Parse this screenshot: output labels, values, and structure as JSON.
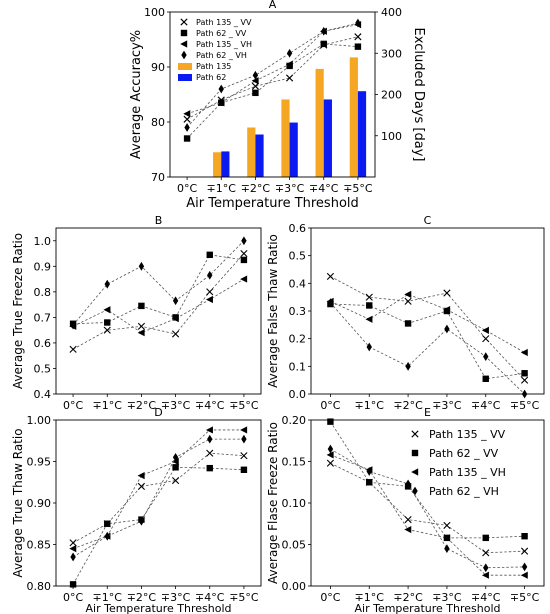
{
  "x_categories": [
    "0°C",
    "∓1°C",
    "∓2°C",
    "∓3°C",
    "∓4°C",
    "∓5°C"
  ],
  "xlabel": "Air Temperature Threshold",
  "chart_data": [
    {
      "panel": "A",
      "type": "line",
      "title": "A",
      "xlabel": "Air Temperature Threshold",
      "ylabel": "Average Accuracy%",
      "ylim": [
        70,
        100
      ],
      "yticks": [
        70,
        80,
        90,
        100
      ],
      "y2label": "Excluded Days [day]",
      "y2lim": [
        0,
        400
      ],
      "y2ticks": [
        100,
        200,
        300,
        400
      ],
      "legend_position": "top-left",
      "categories": [
        "0°C",
        "∓1°C",
        "∓2°C",
        "∓3°C",
        "∓4°C",
        "∓5°C"
      ],
      "series": [
        {
          "name": "Path 135 _ VV",
          "marker": "x",
          "values": [
            80.5,
            84.0,
            86.5,
            88.0,
            94.0,
            95.5
          ]
        },
        {
          "name": "Path 62 _ VV",
          "marker": "square",
          "values": [
            77.0,
            83.5,
            85.3,
            90.2,
            94.2,
            93.7
          ]
        },
        {
          "name": "Path 135 _ VH",
          "marker": "triangle-left",
          "values": [
            81.5,
            83.5,
            87.5,
            90.5,
            96.5,
            97.7
          ]
        },
        {
          "name": "Path 62 _ VH",
          "marker": "diamond",
          "values": [
            79.0,
            86.0,
            88.5,
            92.5,
            96.5,
            98.0
          ]
        }
      ],
      "bars": [
        {
          "name": "Path 135",
          "color": "#F5A623",
          "axis": "y2",
          "values": [
            0,
            60,
            120,
            188,
            262,
            290
          ]
        },
        {
          "name": "Path 62",
          "color": "#0A1AF0",
          "axis": "y2",
          "values": [
            0,
            62,
            103,
            132,
            188,
            208
          ]
        }
      ]
    },
    {
      "panel": "B",
      "type": "line",
      "title": "B",
      "ylabel": "Average True Freeze Ratio",
      "ylim": [
        0.4,
        1.05
      ],
      "yticks": [
        0.4,
        0.5,
        0.6,
        0.7,
        0.8,
        0.9,
        1.0
      ],
      "categories": [
        "0°C",
        "∓1°C",
        "∓2°C",
        "∓3°C",
        "∓4°C",
        "∓5°C"
      ],
      "series": [
        {
          "name": "Path 135 _ VV",
          "marker": "x",
          "values": [
            0.575,
            0.65,
            0.665,
            0.635,
            0.8,
            0.95
          ]
        },
        {
          "name": "Path 62 _ VV",
          "marker": "square",
          "values": [
            0.675,
            0.68,
            0.745,
            0.7,
            0.945,
            0.925
          ]
        },
        {
          "name": "Path 135 _ VH",
          "marker": "triangle-left",
          "values": [
            0.665,
            0.73,
            0.64,
            0.695,
            0.77,
            0.85
          ]
        },
        {
          "name": "Path 62 _ VH",
          "marker": "diamond",
          "values": [
            0.67,
            0.83,
            0.9,
            0.765,
            0.865,
            1.0
          ]
        }
      ]
    },
    {
      "panel": "C",
      "type": "line",
      "title": "C",
      "ylabel": "Average False Thaw Ratio",
      "ylim": [
        0.0,
        0.6
      ],
      "yticks": [
        0.0,
        0.1,
        0.2,
        0.3,
        0.4,
        0.5,
        0.6
      ],
      "categories": [
        "0°C",
        "∓1°C",
        "∓2°C",
        "∓3°C",
        "∓4°C",
        "∓5°C"
      ],
      "series": [
        {
          "name": "Path 135 _ VV",
          "marker": "x",
          "values": [
            0.425,
            0.35,
            0.335,
            0.365,
            0.2,
            0.05
          ]
        },
        {
          "name": "Path 62 _ VV",
          "marker": "square",
          "values": [
            0.325,
            0.32,
            0.255,
            0.3,
            0.055,
            0.075
          ]
        },
        {
          "name": "Path 135 _ VH",
          "marker": "triangle-left",
          "values": [
            0.335,
            0.27,
            0.36,
            0.305,
            0.23,
            0.15
          ]
        },
        {
          "name": "Path 62 _ VH",
          "marker": "diamond",
          "values": [
            0.33,
            0.17,
            0.1,
            0.235,
            0.135,
            0.0
          ]
        }
      ]
    },
    {
      "panel": "D",
      "type": "line",
      "title": "D",
      "xlabel": "Air Temperature Threshold",
      "ylabel": "Average True Thaw Ratio",
      "ylim": [
        0.8,
        1.0
      ],
      "yticks": [
        0.8,
        0.85,
        0.9,
        0.95,
        1.0
      ],
      "categories": [
        "0°C",
        "∓1°C",
        "∓2°C",
        "∓3°C",
        "∓4°C",
        "∓5°C"
      ],
      "series": [
        {
          "name": "Path 135 _ VV",
          "marker": "x",
          "values": [
            0.852,
            0.875,
            0.92,
            0.927,
            0.96,
            0.957
          ]
        },
        {
          "name": "Path 62 _ VV",
          "marker": "square",
          "values": [
            0.802,
            0.875,
            0.88,
            0.943,
            0.942,
            0.94
          ]
        },
        {
          "name": "Path 135 _ VH",
          "marker": "triangle-left",
          "values": [
            0.845,
            0.86,
            0.933,
            0.95,
            0.988,
            0.988
          ]
        },
        {
          "name": "Path 62 _ VH",
          "marker": "diamond",
          "values": [
            0.835,
            0.86,
            0.878,
            0.955,
            0.977,
            0.977
          ]
        }
      ]
    },
    {
      "panel": "E",
      "type": "line",
      "title": "E",
      "xlabel": "Air Temperature Threshold",
      "ylabel": "Average Flase Freeze Ratio",
      "ylim": [
        0.0,
        0.2
      ],
      "yticks": [
        0.0,
        0.05,
        0.1,
        0.15,
        0.2
      ],
      "legend_position": "top-right",
      "categories": [
        "0°C",
        "∓1°C",
        "∓2°C",
        "∓3°C",
        "∓4°C",
        "∓5°C"
      ],
      "series": [
        {
          "name": "Path 135 _ VV",
          "marker": "x",
          "values": [
            0.148,
            0.125,
            0.08,
            0.073,
            0.04,
            0.042
          ]
        },
        {
          "name": "Path 62 _ VV",
          "marker": "square",
          "values": [
            0.198,
            0.125,
            0.12,
            0.058,
            0.058,
            0.06
          ]
        },
        {
          "name": "Path 135 _ VH",
          "marker": "triangle-left",
          "values": [
            0.158,
            0.14,
            0.068,
            0.058,
            0.013,
            0.013
          ]
        },
        {
          "name": "Path 62 _ VH",
          "marker": "diamond",
          "values": [
            0.165,
            0.138,
            0.123,
            0.045,
            0.022,
            0.023
          ]
        }
      ]
    }
  ]
}
